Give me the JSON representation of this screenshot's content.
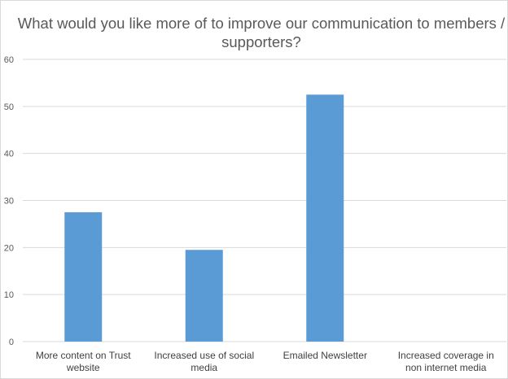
{
  "chart_data": {
    "type": "bar",
    "title": "What would you like more of to improve our communication to members / supporters?",
    "categories": [
      "More content on Trust website",
      "Increased use of social media",
      "Emailed Newsletter",
      "Increased coverage in non internet media"
    ],
    "values": [
      27.5,
      19.5,
      52.5,
      0
    ],
    "ylim": [
      0,
      60
    ],
    "yticks": [
      0,
      10,
      20,
      30,
      40,
      50,
      60
    ],
    "grid": true,
    "legend": "none",
    "bar_color": "#5b9bd5",
    "grid_color": "#d9d9d9"
  }
}
